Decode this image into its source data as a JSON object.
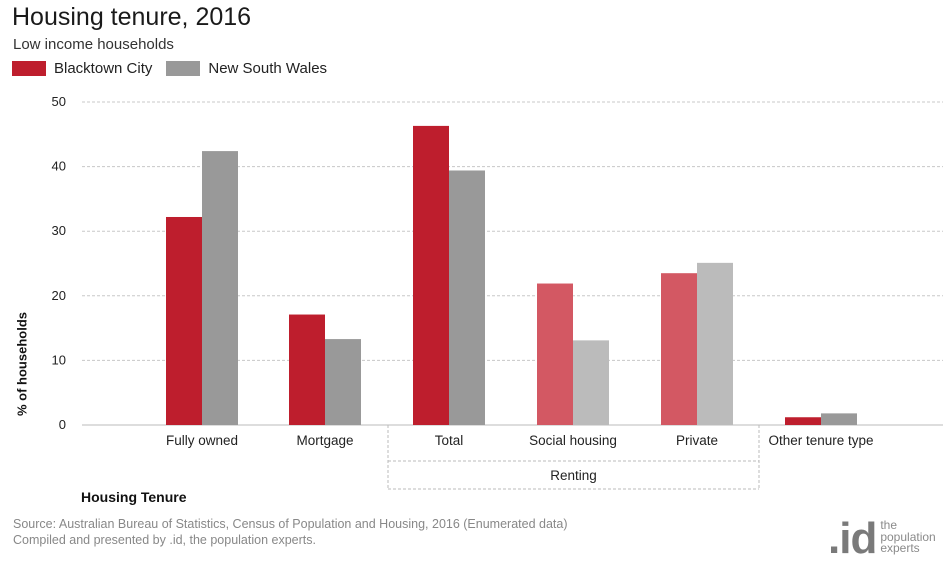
{
  "header": {
    "title": "Housing tenure, 2016",
    "subtitle": "Low income households"
  },
  "legend": [
    {
      "label": "Blacktown City",
      "color": "#be1e2d"
    },
    {
      "label": "New South Wales",
      "color": "#999999"
    }
  ],
  "chart_data": {
    "type": "bar",
    "title": "Housing tenure, 2016",
    "subtitle": "Low income households",
    "xlabel": "Housing Tenure",
    "ylabel": "% of households",
    "ylim": [
      0,
      50
    ],
    "yticks": [
      0,
      10,
      20,
      30,
      40,
      50
    ],
    "grid": true,
    "legend_position": "top-left",
    "categories": [
      "Fully owned",
      "Mortgage",
      "Total",
      "Social housing",
      "Private",
      "Other tenure type"
    ],
    "group_label": {
      "label": "Renting",
      "categories": [
        "Total",
        "Social housing",
        "Private"
      ]
    },
    "series": [
      {
        "name": "Blacktown City",
        "color": "#be1e2d",
        "light_color": "#d35863",
        "values": [
          32.2,
          17.1,
          46.3,
          21.9,
          23.5,
          1.2
        ]
      },
      {
        "name": "New South Wales",
        "color": "#999999",
        "light_color": "#bbbbbb",
        "values": [
          42.4,
          13.3,
          39.4,
          13.1,
          25.1,
          1.8
        ]
      }
    ],
    "lighter_categories": [
      "Social housing",
      "Private"
    ]
  },
  "footer": {
    "source_line1": "Source: Australian Bureau of Statistics, Census of Population and Housing, 2016 (Enumerated data)",
    "source_line2": "Compiled and presented by .id, the population experts."
  },
  "logo": {
    "mark": ".id",
    "line1": "the",
    "line2": "population",
    "line3": "experts"
  }
}
